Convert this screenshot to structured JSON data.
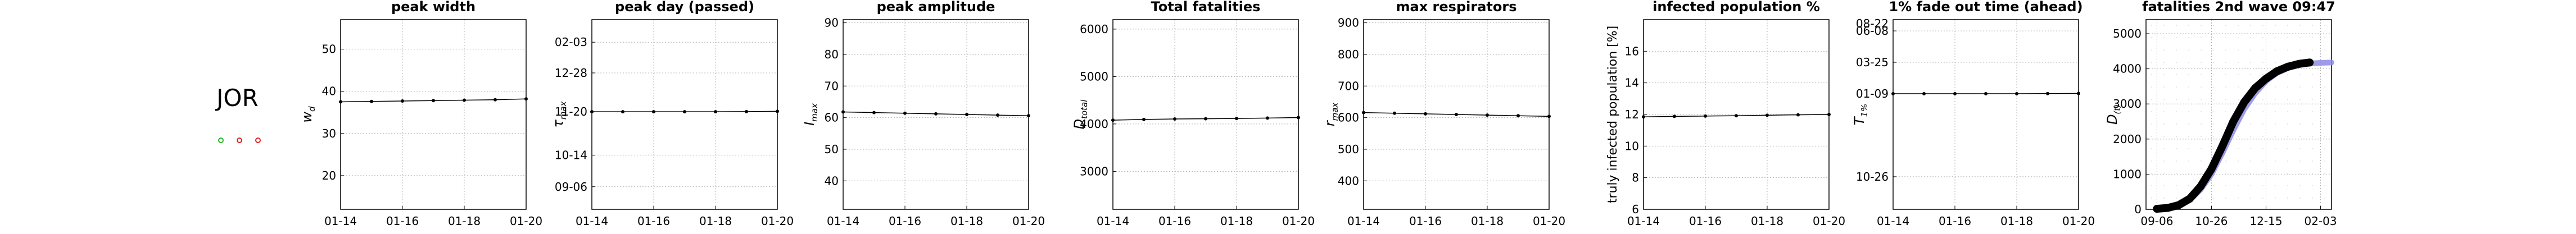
{
  "country": "JOR",
  "status_dots": [
    "#22bb22",
    "#dd2222",
    "#dd2222"
  ],
  "chart_data": [
    {
      "type": "line",
      "title": "peak width",
      "ylabel_tex": [
        "w",
        "d"
      ],
      "x": [
        "01-14",
        "01-15",
        "01-16",
        "01-17",
        "01-18",
        "01-19",
        "01-20"
      ],
      "xticks": [
        "01-14",
        "01-16",
        "01-18",
        "01-20"
      ],
      "values": [
        37.5,
        37.6,
        37.7,
        37.8,
        37.9,
        38.0,
        38.2
      ],
      "ylim": [
        12,
        57
      ],
      "yticks": [
        20,
        30,
        40,
        50
      ],
      "yticklabels": [
        "20",
        "30",
        "40",
        "50"
      ],
      "grid": true
    },
    {
      "type": "line",
      "title": "peak day (passed)",
      "ylabel_tex": [
        "τ",
        "max"
      ],
      "x": [
        "01-14",
        "01-15",
        "01-16",
        "01-17",
        "01-18",
        "01-19",
        "01-20"
      ],
      "xticks": [
        "01-14",
        "01-16",
        "01-18",
        "01-20"
      ],
      "values": [
        108,
        108,
        108,
        108,
        108,
        108.2,
        108.5
      ],
      "ylim": [
        0,
        210
      ],
      "yticks": [
        25,
        60,
        108,
        151,
        185
      ],
      "yticklabels": [
        "09-06",
        "10-14",
        "11-20",
        "12-28",
        "02-03"
      ],
      "grid": true
    },
    {
      "type": "line",
      "title": "peak amplitude",
      "ylabel_tex": [
        "I",
        "max"
      ],
      "x": [
        "01-14",
        "01-15",
        "01-16",
        "01-17",
        "01-18",
        "01-19",
        "01-20"
      ],
      "xticks": [
        "01-14",
        "01-16",
        "01-18",
        "01-20"
      ],
      "values": [
        61.8,
        61.6,
        61.4,
        61.2,
        61.0,
        60.8,
        60.6
      ],
      "ylim": [
        31,
        91
      ],
      "yticks": [
        40,
        50,
        60,
        70,
        80,
        90
      ],
      "yticklabels": [
        "40",
        "50",
        "60",
        "70",
        "80",
        "90"
      ],
      "grid": true
    },
    {
      "type": "line",
      "title": "Total fatalities",
      "ylabel_tex": [
        "D",
        "total"
      ],
      "x": [
        "01-14",
        "01-15",
        "01-16",
        "01-17",
        "01-18",
        "01-19",
        "01-20"
      ],
      "xticks": [
        "01-14",
        "01-16",
        "01-18",
        "01-20"
      ],
      "values": [
        4080,
        4095,
        4105,
        4110,
        4115,
        4125,
        4135
      ],
      "ylim": [
        2200,
        6200
      ],
      "yticks": [
        3000,
        4000,
        5000,
        6000
      ],
      "yticklabels": [
        "3000",
        "4000",
        "5000",
        "6000"
      ],
      "grid": true
    },
    {
      "type": "line",
      "title": "max respirators",
      "ylabel_tex": [
        "r",
        "max"
      ],
      "x": [
        "01-14",
        "01-15",
        "01-16",
        "01-17",
        "01-18",
        "01-19",
        "01-20"
      ],
      "xticks": [
        "01-14",
        "01-16",
        "01-18",
        "01-20"
      ],
      "values": [
        616,
        614,
        612,
        610,
        608,
        606,
        604
      ],
      "ylim": [
        310,
        910
      ],
      "yticks": [
        400,
        500,
        600,
        700,
        800,
        900
      ],
      "yticklabels": [
        "400",
        "500",
        "600",
        "700",
        "800",
        "900"
      ],
      "grid": true
    },
    {
      "type": "line",
      "title": "infected population %",
      "ylabel": "truly infected population [%]",
      "x": [
        "01-14",
        "01-15",
        "01-16",
        "01-17",
        "01-18",
        "01-19",
        "01-20"
      ],
      "xticks": [
        "01-14",
        "01-16",
        "01-18",
        "01-20"
      ],
      "values": [
        11.85,
        11.88,
        11.9,
        11.92,
        11.95,
        11.98,
        12.0
      ],
      "ylim": [
        6,
        18
      ],
      "yticks": [
        6,
        8,
        10,
        12,
        14,
        16
      ],
      "yticklabels": [
        "6",
        "8",
        "10",
        "12",
        "14",
        "16"
      ],
      "grid": true
    },
    {
      "type": "line",
      "title": "1% fade out time (ahead)",
      "ylabel_tex": [
        "T",
        "1%"
      ],
      "x": [
        "01-14",
        "01-15",
        "01-16",
        "01-17",
        "01-18",
        "01-19",
        "01-20"
      ],
      "xticks": [
        "01-14",
        "01-16",
        "01-18",
        "01-20"
      ],
      "values": [
        195,
        195,
        195,
        195,
        195,
        195.3,
        195.5
      ],
      "ylim": [
        0,
        320
      ],
      "yticks": [
        55,
        195,
        248,
        301
      ],
      "yticklabels": [
        "10-26",
        "01-09",
        "03-25",
        "06-08"
      ],
      "extra_ytick": {
        "value": 320,
        "label": "08-22"
      },
      "grid": true
    },
    {
      "type": "line",
      "title": "fatalities 2nd wave 09:47",
      "ylabel_tex": [
        "D",
        "(t)"
      ],
      "xticks_days": [
        0,
        50,
        100,
        150
      ],
      "xticks": [
        "09-06",
        "10-26",
        "12-15",
        "02-03"
      ],
      "xlim": [
        -10,
        160
      ],
      "ylim": [
        0,
        5400
      ],
      "yticks": [
        0,
        1000,
        2000,
        3000,
        4000,
        5000
      ],
      "yticklabels": [
        "0",
        "1000",
        "2000",
        "3000",
        "4000",
        "5000"
      ],
      "series": [
        {
          "role": "model",
          "color": "#8c8ce6",
          "x": [
            0,
            10,
            20,
            30,
            40,
            50,
            60,
            70,
            80,
            90,
            100,
            110,
            120,
            130,
            140,
            150,
            160
          ],
          "y": [
            10,
            30,
            100,
            260,
            560,
            1000,
            1600,
            2250,
            2850,
            3300,
            3650,
            3880,
            4020,
            4100,
            4150,
            4170,
            4180
          ]
        },
        {
          "role": "observed",
          "color": "#000000",
          "x": [
            0,
            10,
            20,
            30,
            40,
            50,
            60,
            70,
            80,
            90,
            100,
            110,
            120,
            130,
            140
          ],
          "y": [
            15,
            40,
            120,
            300,
            650,
            1150,
            1800,
            2500,
            3050,
            3450,
            3720,
            3930,
            4060,
            4140,
            4180
          ]
        }
      ],
      "grid": true
    }
  ]
}
